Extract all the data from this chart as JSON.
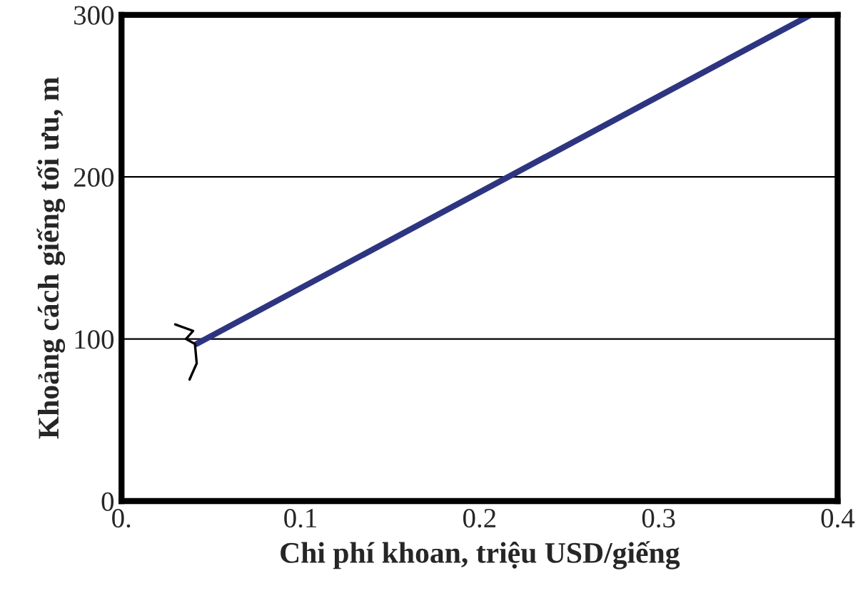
{
  "chart_data": {
    "type": "line",
    "xlabel": "Chi phí khoan, triệu USD/giếng",
    "ylabel": "Khoảng cách giếng tối ưu, m",
    "x": [
      0.042,
      0.385
    ],
    "series": [
      {
        "color": "#2e3580",
        "values": [
          97,
          300
        ]
      }
    ],
    "xlim": [
      0,
      0.4
    ],
    "ylim": [
      0,
      300
    ],
    "xticks": [
      {
        "value": 0,
        "label": "0."
      },
      0.1,
      0.2,
      0.3,
      0.4
    ],
    "yticks": [
      0,
      100,
      200,
      300
    ],
    "grid": "y",
    "marker": "none",
    "line_style": "solid"
  }
}
